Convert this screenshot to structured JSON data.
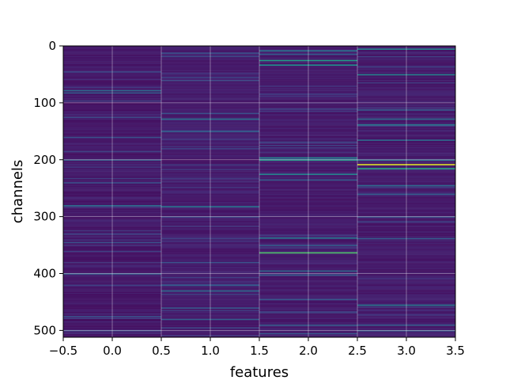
{
  "chart_data": {
    "type": "heatmap",
    "title": "",
    "xlabel": "features",
    "ylabel": "channels",
    "xlim": [
      -0.5,
      3.5
    ],
    "ylim": [
      512,
      0
    ],
    "y_inverted": true,
    "grid": true,
    "colormap": "viridis",
    "n_rows": 512,
    "n_cols": 4,
    "x_ticks": [
      -0.5,
      0.0,
      0.5,
      1.0,
      1.5,
      2.0,
      2.5,
      3.0,
      3.5
    ],
    "x_tick_labels": [
      "−0.5",
      "0.0",
      "0.5",
      "1.0",
      "1.5",
      "2.0",
      "2.5",
      "3.0",
      "3.5"
    ],
    "y_ticks": [
      0,
      100,
      200,
      300,
      400,
      500
    ],
    "y_tick_labels": [
      "0",
      "100",
      "200",
      "300",
      "400",
      "500"
    ],
    "columns": [
      {
        "feature": 0,
        "base_level": 0.04,
        "highlights": [
          {
            "row": 45,
            "value": 0.22
          },
          {
            "row": 78,
            "value": 0.35
          },
          {
            "row": 82,
            "value": 0.3
          },
          {
            "row": 96,
            "value": 0.2
          },
          {
            "row": 125,
            "value": 0.22
          },
          {
            "row": 160,
            "value": 0.25
          },
          {
            "row": 185,
            "value": 0.2
          },
          {
            "row": 200,
            "value": 0.3
          },
          {
            "row": 240,
            "value": 0.25
          },
          {
            "row": 280,
            "value": 0.35
          },
          {
            "row": 330,
            "value": 0.2
          },
          {
            "row": 345,
            "value": 0.25
          },
          {
            "row": 400,
            "value": 0.3
          },
          {
            "row": 420,
            "value": 0.2
          },
          {
            "row": 475,
            "value": 0.25
          },
          {
            "row": 500,
            "value": 0.22
          }
        ]
      },
      {
        "feature": 1,
        "base_level": 0.05,
        "highlights": [
          {
            "row": 12,
            "value": 0.25
          },
          {
            "row": 18,
            "value": 0.22
          },
          {
            "row": 55,
            "value": 0.2
          },
          {
            "row": 118,
            "value": 0.25
          },
          {
            "row": 128,
            "value": 0.38
          },
          {
            "row": 150,
            "value": 0.3
          },
          {
            "row": 180,
            "value": 0.2
          },
          {
            "row": 282,
            "value": 0.4
          },
          {
            "row": 300,
            "value": 0.22
          },
          {
            "row": 380,
            "value": 0.25
          },
          {
            "row": 420,
            "value": 0.3
          },
          {
            "row": 430,
            "value": 0.35
          },
          {
            "row": 460,
            "value": 0.28
          },
          {
            "row": 480,
            "value": 0.3
          },
          {
            "row": 495,
            "value": 0.22
          }
        ]
      },
      {
        "feature": 2,
        "base_level": 0.05,
        "highlights": [
          {
            "row": 8,
            "value": 0.4
          },
          {
            "row": 14,
            "value": 0.3
          },
          {
            "row": 25,
            "value": 0.55
          },
          {
            "row": 33,
            "value": 0.5
          },
          {
            "row": 196,
            "value": 0.45
          },
          {
            "row": 200,
            "value": 0.55
          },
          {
            "row": 225,
            "value": 0.45
          },
          {
            "row": 235,
            "value": 0.3
          },
          {
            "row": 337,
            "value": 0.42
          },
          {
            "row": 350,
            "value": 0.3
          },
          {
            "row": 363,
            "value": 0.72
          },
          {
            "row": 395,
            "value": 0.35
          },
          {
            "row": 402,
            "value": 0.3
          },
          {
            "row": 445,
            "value": 0.28
          },
          {
            "row": 490,
            "value": 0.3
          },
          {
            "row": 505,
            "value": 0.28
          }
        ]
      },
      {
        "feature": 3,
        "base_level": 0.05,
        "highlights": [
          {
            "row": 5,
            "value": 0.45
          },
          {
            "row": 50,
            "value": 0.45
          },
          {
            "row": 112,
            "value": 0.3
          },
          {
            "row": 128,
            "value": 0.35
          },
          {
            "row": 138,
            "value": 0.4
          },
          {
            "row": 165,
            "value": 0.35
          },
          {
            "row": 200,
            "value": 0.4
          },
          {
            "row": 208,
            "value": 0.95
          },
          {
            "row": 215,
            "value": 0.6
          },
          {
            "row": 245,
            "value": 0.35
          },
          {
            "row": 260,
            "value": 0.3
          },
          {
            "row": 300,
            "value": 0.25
          },
          {
            "row": 338,
            "value": 0.3
          },
          {
            "row": 455,
            "value": 0.42
          },
          {
            "row": 490,
            "value": 0.3
          },
          {
            "row": 500,
            "value": 0.28
          }
        ]
      }
    ]
  }
}
